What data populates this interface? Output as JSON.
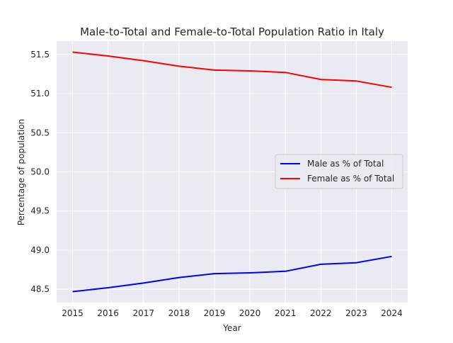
{
  "chart_data": {
    "type": "line",
    "title": "Male-to-Total and Female-to-Total Population Ratio in Italy",
    "xlabel": "Year",
    "ylabel": "Percentage of population",
    "x": [
      2015,
      2016,
      2017,
      2018,
      2019,
      2020,
      2021,
      2022,
      2023,
      2024
    ],
    "x_ticks": [
      "2015",
      "2016",
      "2017",
      "2018",
      "2019",
      "2020",
      "2021",
      "2022",
      "2023",
      "2024"
    ],
    "y_ticks": [
      "48.5",
      "49.0",
      "49.5",
      "50.0",
      "50.5",
      "51.0",
      "51.5"
    ],
    "xlim": [
      2014.55,
      2024.45
    ],
    "ylim": [
      48.33,
      51.67
    ],
    "grid": true,
    "legend_position": "center-right",
    "series": [
      {
        "name": "Male as % of Total",
        "color": "#0000ff",
        "values": [
          48.47,
          48.52,
          48.58,
          48.65,
          48.7,
          48.71,
          48.73,
          48.82,
          48.84,
          48.92
        ]
      },
      {
        "name": "Female as % of Total",
        "color": "#ff0000",
        "values": [
          51.53,
          51.48,
          51.42,
          51.35,
          51.3,
          51.29,
          51.27,
          51.18,
          51.16,
          51.08
        ]
      }
    ]
  }
}
